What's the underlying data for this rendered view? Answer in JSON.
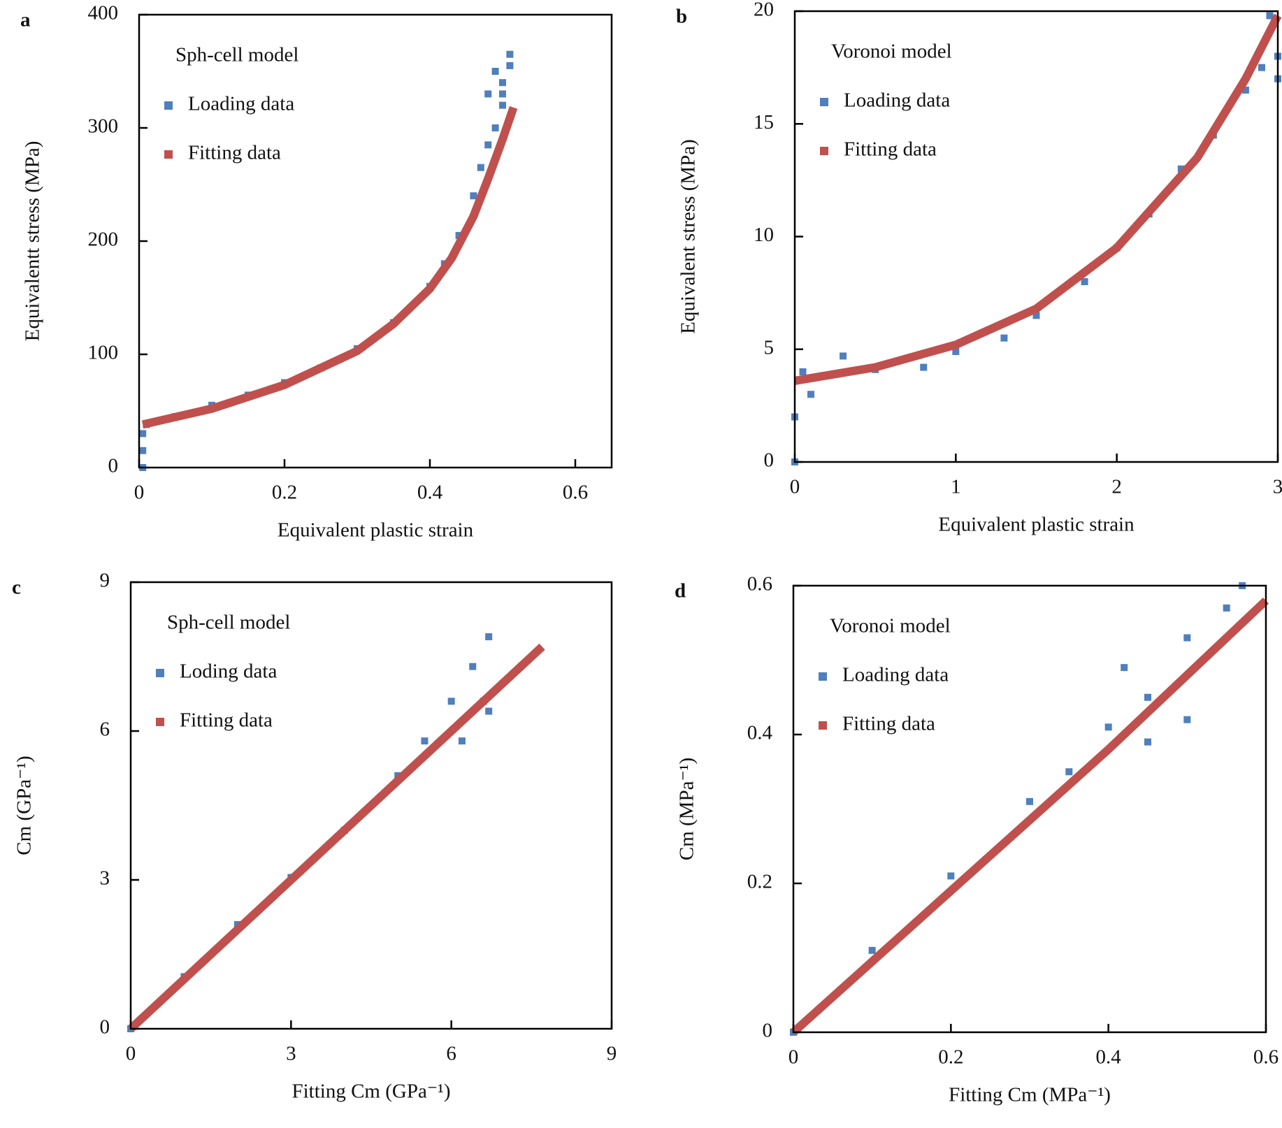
{
  "chart_data": [
    {
      "type": "scatter",
      "panel": "a",
      "title": "Sph-cell model",
      "x_label": "Equivalent plastic strain",
      "y_label": "Equivalentt stress (MPa)",
      "xlim": [
        0,
        0.65
      ],
      "xticks": [
        0,
        0.2,
        0.4,
        0.6
      ],
      "ylim": [
        0,
        400
      ],
      "yticks": [
        0,
        100,
        200,
        300,
        400
      ],
      "series": [
        {
          "name": "Loading data",
          "color": "#4f7fbc",
          "mode": "markers",
          "x": [
            0.005,
            0.005,
            0.005,
            0.01,
            0.05,
            0.1,
            0.15,
            0.2,
            0.25,
            0.3,
            0.35,
            0.4,
            0.42,
            0.44,
            0.46,
            0.47,
            0.48,
            0.49,
            0.5,
            0.51,
            0.5,
            0.49,
            0.48,
            0.51,
            0.5
          ],
          "y": [
            0,
            15,
            30,
            38,
            45,
            55,
            64,
            75,
            88,
            105,
            128,
            160,
            180,
            205,
            240,
            265,
            285,
            300,
            330,
            365,
            340,
            350,
            330,
            355,
            320
          ]
        },
        {
          "name": "Fitting data",
          "color": "#c0504d",
          "mode": "line",
          "x": [
            0.005,
            0.1,
            0.2,
            0.3,
            0.35,
            0.4,
            0.43,
            0.46,
            0.48,
            0.5,
            0.515
          ],
          "y": [
            38,
            52,
            73,
            103,
            127,
            158,
            185,
            222,
            255,
            290,
            318
          ]
        }
      ]
    },
    {
      "type": "scatter",
      "panel": "b",
      "title": "Voronoi model",
      "x_label": "Equivalent plastic strain",
      "y_label": "Equivalent stress (MPa)",
      "xlim": [
        0,
        3
      ],
      "xticks": [
        0,
        1,
        2,
        3
      ],
      "ylim": [
        0,
        20
      ],
      "yticks": [
        0,
        5,
        10,
        15,
        20
      ],
      "series": [
        {
          "name": "Loading data",
          "color": "#4f7fbc",
          "mode": "markers",
          "x": [
            0,
            0,
            0.05,
            0.1,
            0.3,
            0.5,
            0.8,
            1.0,
            1.3,
            1.5,
            1.8,
            2.0,
            2.2,
            2.4,
            2.6,
            2.8,
            2.9,
            3.0,
            3.0,
            2.95
          ],
          "y": [
            0,
            2,
            4,
            3,
            4.7,
            4.1,
            4.2,
            4.9,
            5.5,
            6.5,
            8,
            9.5,
            11,
            13,
            14.5,
            16.5,
            17.5,
            17,
            18,
            19.8
          ]
        },
        {
          "name": "Fitting data",
          "color": "#c0504d",
          "mode": "line",
          "x": [
            0,
            0.5,
            1,
            1.5,
            2,
            2.5,
            2.8,
            3.0
          ],
          "y": [
            3.6,
            4.2,
            5.2,
            6.8,
            9.5,
            13.5,
            17,
            19.8
          ]
        }
      ]
    },
    {
      "type": "scatter",
      "panel": "c",
      "title": "Sph-cell model",
      "x_label": "Fitting Cm (GPa⁻¹)",
      "y_label": "Cm (GPa⁻¹)",
      "xlim": [
        0,
        9
      ],
      "xticks": [
        0,
        3,
        6,
        9
      ],
      "ylim": [
        0,
        9
      ],
      "yticks": [
        0,
        3,
        6,
        9
      ],
      "series": [
        {
          "name": "Loding data",
          "color": "#4f7fbc",
          "mode": "markers",
          "x": [
            0,
            1,
            2,
            3,
            4,
            5,
            5.5,
            6,
            6.4,
            6.7,
            6.7,
            6.6,
            6.2
          ],
          "y": [
            0,
            1.05,
            2.1,
            3.05,
            4,
            5.1,
            5.8,
            6.6,
            7.3,
            7.9,
            6.4,
            6.6,
            5.8
          ]
        },
        {
          "name": "Fitting data",
          "color": "#c0504d",
          "mode": "line",
          "x": [
            0,
            2,
            4,
            6,
            7.7
          ],
          "y": [
            0,
            2,
            4,
            6,
            7.7
          ]
        }
      ]
    },
    {
      "type": "scatter",
      "panel": "d",
      "title": "Voronoi model",
      "x_label": "Fitting Cm (MPa⁻¹)",
      "y_label": "Cm (MPa⁻¹)",
      "xlim": [
        0,
        0.6
      ],
      "xticks": [
        0,
        0.2,
        0.4,
        0.6
      ],
      "ylim": [
        0,
        0.6
      ],
      "yticks": [
        0,
        0.2,
        0.4,
        0.6
      ],
      "series": [
        {
          "name": "Loading data",
          "color": "#4f7fbc",
          "mode": "markers",
          "x": [
            0,
            0.1,
            0.2,
            0.3,
            0.35,
            0.4,
            0.42,
            0.45,
            0.5,
            0.55,
            0.57,
            0.5,
            0.45
          ],
          "y": [
            0,
            0.11,
            0.21,
            0.31,
            0.35,
            0.41,
            0.49,
            0.45,
            0.53,
            0.57,
            0.6,
            0.42,
            0.39
          ]
        },
        {
          "name": "Fitting data",
          "color": "#c0504d",
          "mode": "line",
          "x": [
            0,
            0.2,
            0.4,
            0.6
          ],
          "y": [
            0,
            0.19,
            0.38,
            0.58
          ]
        }
      ]
    }
  ]
}
